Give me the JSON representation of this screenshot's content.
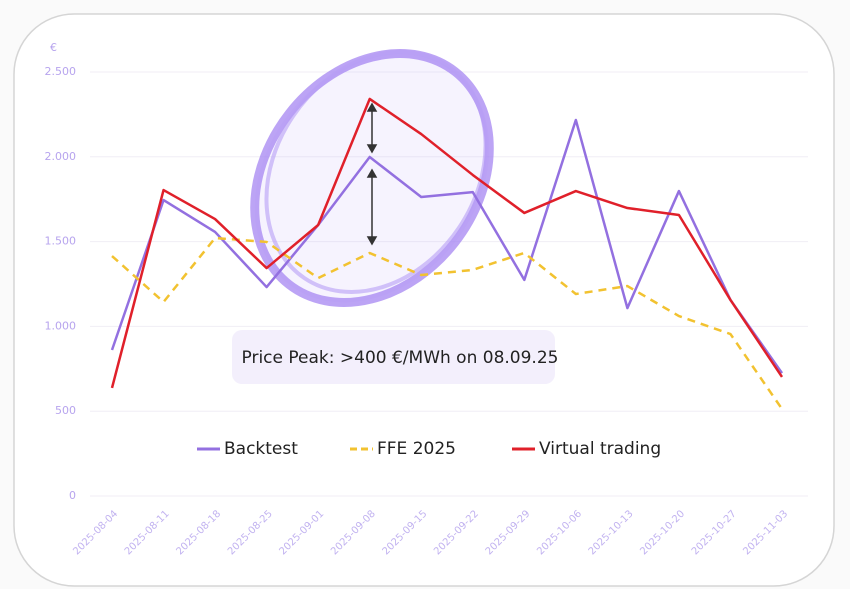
{
  "chart_data": {
    "type": "line",
    "y_label": "€",
    "annotation": "Price Peak: >400 €/MWh on 08.09.25",
    "categories": [
      "2025-08-04",
      "2025-08-11",
      "2025-08-18",
      "2025-08-25",
      "2025-09-01",
      "2025-09-08",
      "2025-09-15",
      "2025-09-22",
      "2025-09-29",
      "2025-10-06",
      "2025-10-13",
      "2025-10-20",
      "2025-10-27",
      "2025-11-03"
    ],
    "series": [
      {
        "name": "Backtest",
        "color": "#9370e0",
        "style": "solid",
        "values": [
          861,
          1745,
          1557,
          1232,
          1598,
          1999,
          1763,
          1792,
          1274,
          2217,
          1108,
          1798,
          1156,
          725
        ]
      },
      {
        "name": "FFE 2025",
        "color": "#f2c230",
        "style": "dashed",
        "values": [
          1415,
          1144,
          1521,
          1498,
          1285,
          1433,
          1303,
          1333,
          1433,
          1191,
          1238,
          1061,
          955,
          513
        ]
      },
      {
        "name": "Virtual trading",
        "color": "#e0202a",
        "style": "solid",
        "values": [
          637,
          1804,
          1633,
          1344,
          1598,
          2341,
          2134,
          1893,
          1669,
          1798,
          1698,
          1657,
          1156,
          702
        ]
      }
    ],
    "ylim": [
      0,
      2500
    ],
    "yticks": [
      0,
      500,
      {
        "value": 1000,
        "label": "1.000"
      },
      {
        "value": 1500,
        "label": "1.500"
      },
      {
        "value": 2000,
        "label": "2.000"
      },
      {
        "value": 2500,
        "label": "2.500"
      }
    ],
    "grid": true,
    "legend": "bottom"
  }
}
